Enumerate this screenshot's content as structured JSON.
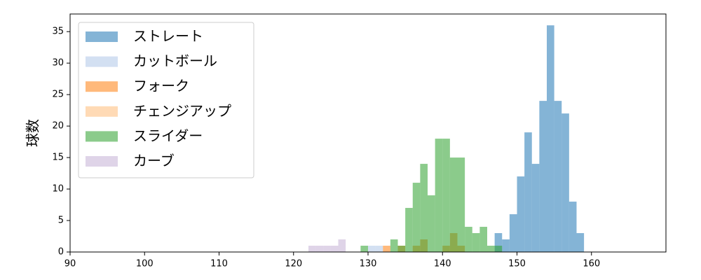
{
  "chart_data": {
    "type": "histogram",
    "y_label": "球数",
    "xlim": [
      90,
      170
    ],
    "xticks": [
      90,
      100,
      110,
      120,
      130,
      140,
      150,
      160
    ],
    "ylim": [
      0,
      37.8
    ],
    "yticks": [
      0,
      5,
      10,
      15,
      20,
      25,
      30,
      35
    ],
    "legend": "upper-left",
    "series": [
      {
        "name": "ストレート",
        "color": "#1f77b4",
        "bins": [
          147,
          148,
          149,
          150,
          151,
          152,
          153,
          154,
          155,
          156,
          157,
          158,
          159
        ],
        "values": [
          3,
          2,
          6,
          12,
          19,
          14,
          24,
          36,
          24,
          22,
          8,
          3
        ]
      },
      {
        "name": "カットボール",
        "color": "#aec7e8",
        "bins": [
          130,
          131,
          132
        ],
        "values": [
          1,
          1
        ]
      },
      {
        "name": "フォーク",
        "color": "#ff7f0e",
        "bins": [
          132,
          133,
          134,
          135,
          136,
          137,
          138,
          139,
          140,
          141,
          142,
          143
        ],
        "values": [
          1,
          0,
          1,
          0,
          1,
          2,
          0,
          0,
          1,
          3,
          1
        ]
      },
      {
        "name": "チェンジアップ",
        "color": "#ffbb78",
        "bins": [
          136,
          137,
          138,
          139,
          140,
          141,
          142,
          143
        ],
        "values": [
          1,
          0,
          0,
          0,
          1,
          1,
          1
        ]
      },
      {
        "name": "スライダー",
        "color": "#2ca02c",
        "bins": [
          129,
          130,
          131,
          132,
          133,
          134,
          135,
          136,
          137,
          138,
          139,
          140,
          141,
          142,
          143,
          144,
          145,
          146,
          147,
          148
        ],
        "values": [
          1,
          0,
          0,
          0,
          2,
          1,
          7,
          11,
          14,
          9,
          18,
          18,
          15,
          15,
          4,
          3,
          4,
          1,
          1
        ]
      },
      {
        "name": "カーブ",
        "color": "#c5b0d5",
        "bins": [
          122,
          123,
          124,
          125,
          126,
          127
        ],
        "values": [
          1,
          1,
          1,
          1,
          2
        ]
      }
    ]
  }
}
